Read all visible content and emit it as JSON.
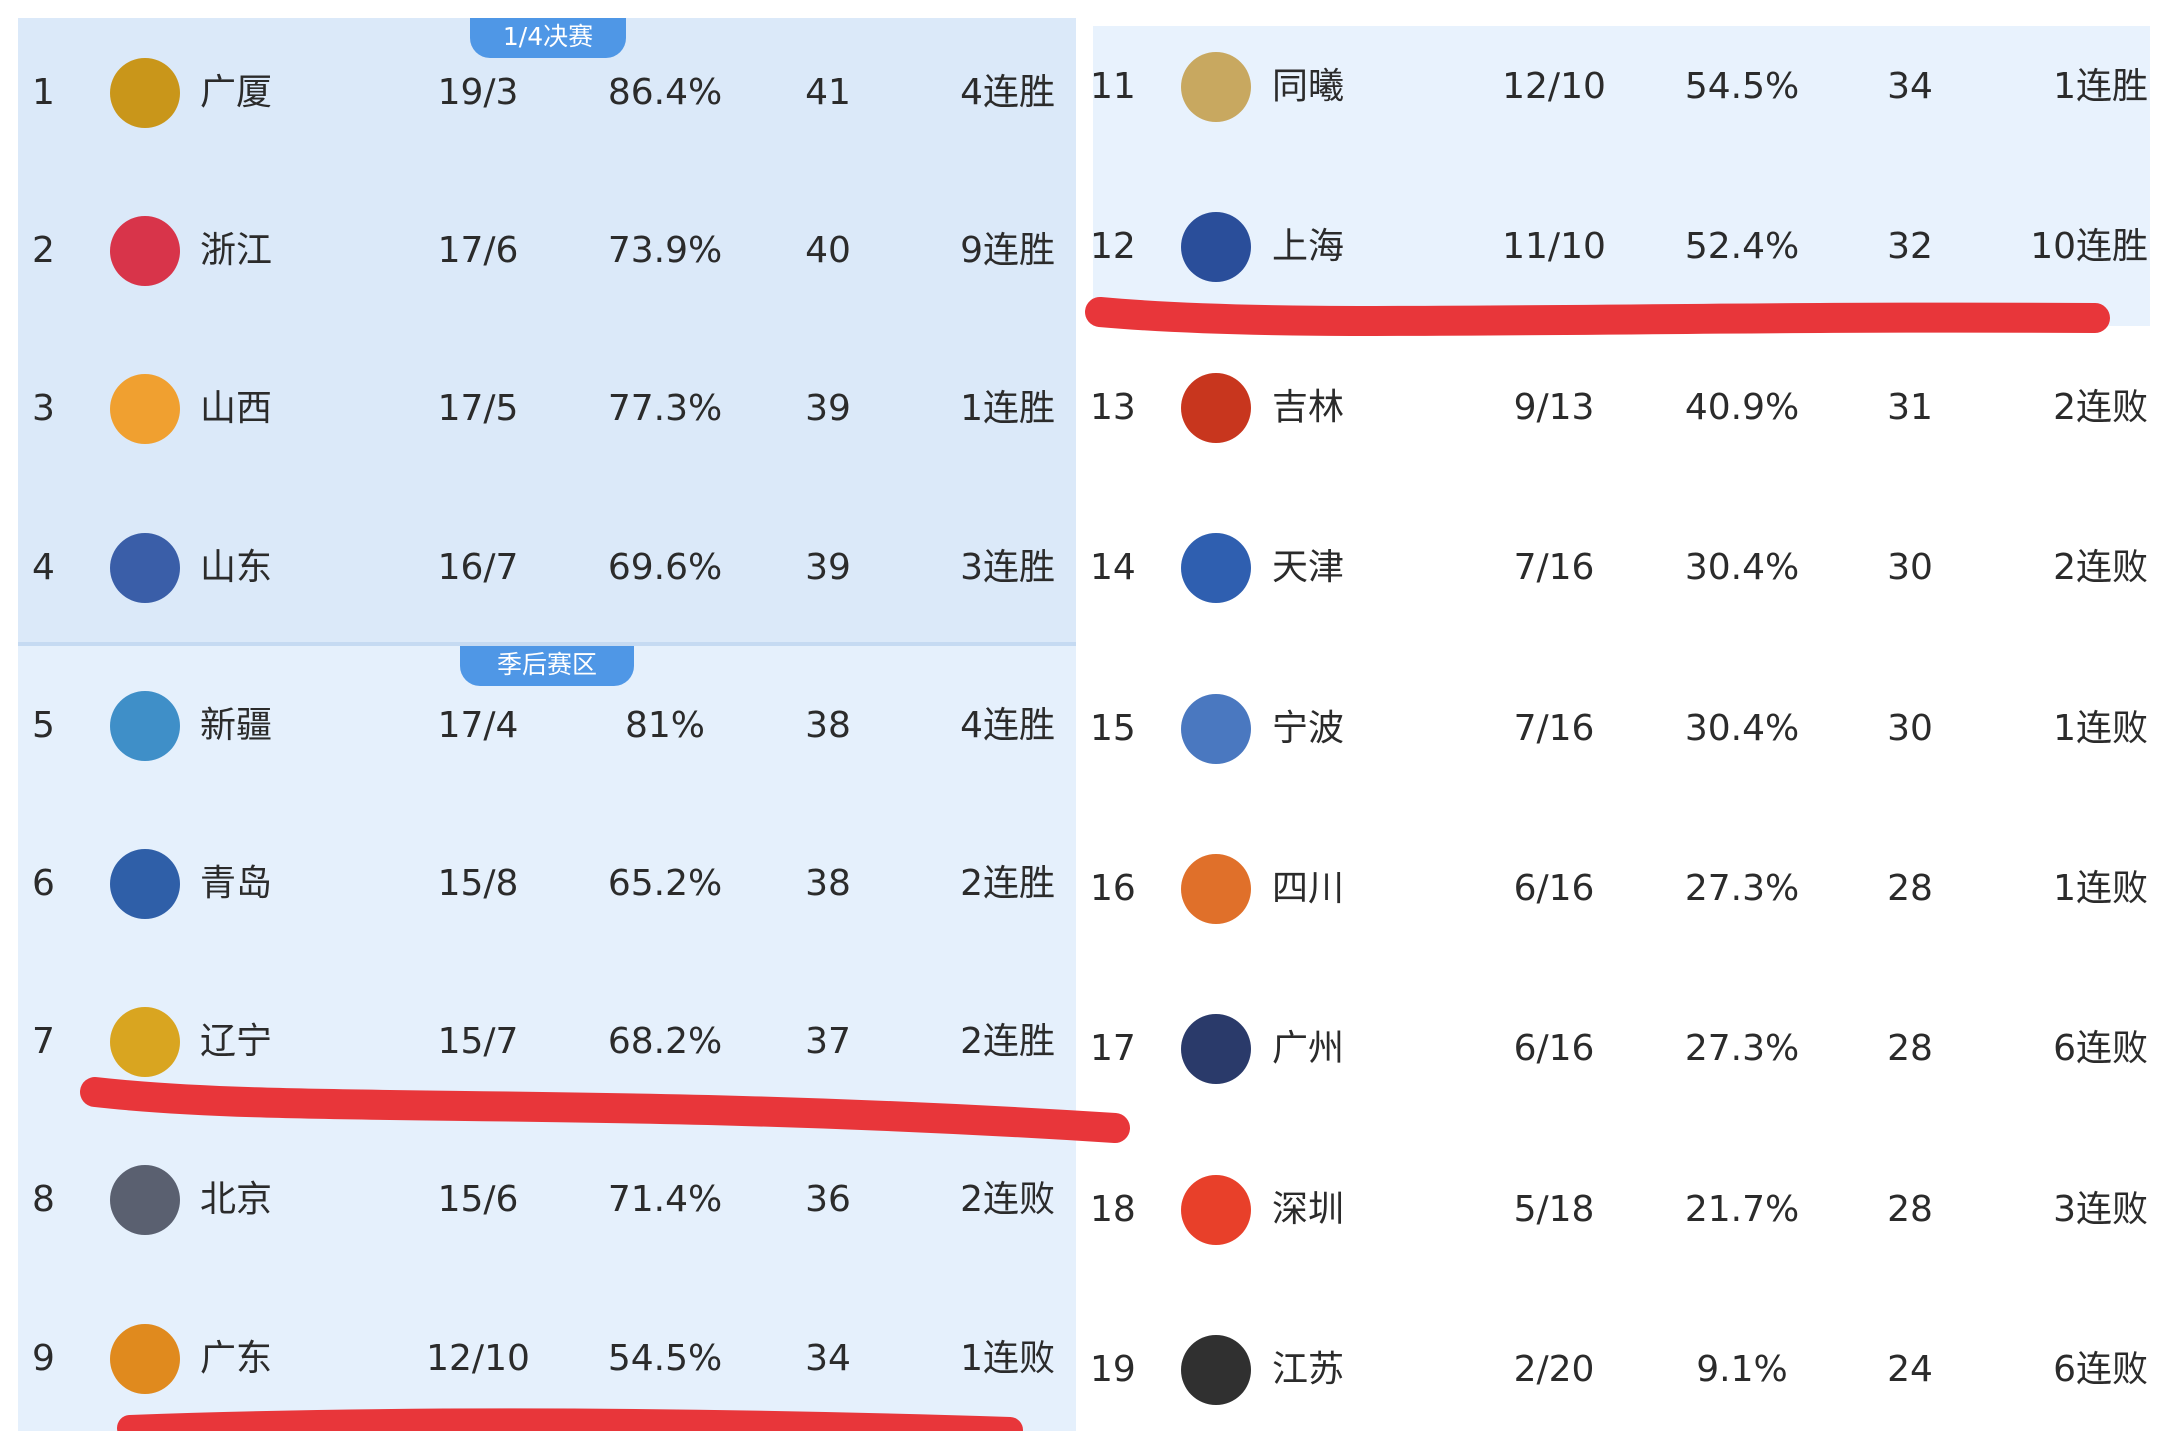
{
  "sections": {
    "quarterfinal_label": "1/4决赛",
    "playoff_label": "季后赛区"
  },
  "colors": {
    "badge": "#4f97e6",
    "highlight_line": "#e8363a"
  },
  "left_table": [
    {
      "rank": "1",
      "team": "广厦",
      "record": "19/3",
      "pct": "86.4%",
      "points": "41",
      "streak": "4连胜",
      "logo_color": "#c9961a"
    },
    {
      "rank": "2",
      "team": "浙江",
      "record": "17/6",
      "pct": "73.9%",
      "points": "40",
      "streak": "9连胜",
      "logo_color": "#d8344a"
    },
    {
      "rank": "3",
      "team": "山西",
      "record": "17/5",
      "pct": "77.3%",
      "points": "39",
      "streak": "1连胜",
      "logo_color": "#f0a030"
    },
    {
      "rank": "4",
      "team": "山东",
      "record": "16/7",
      "pct": "69.6%",
      "points": "39",
      "streak": "3连胜",
      "logo_color": "#3a5ea8"
    },
    {
      "rank": "5",
      "team": "新疆",
      "record": "17/4",
      "pct": "81%",
      "points": "38",
      "streak": "4连胜",
      "logo_color": "#3f8fc8"
    },
    {
      "rank": "6",
      "team": "青岛",
      "record": "15/8",
      "pct": "65.2%",
      "points": "38",
      "streak": "2连胜",
      "logo_color": "#2f5fa8"
    },
    {
      "rank": "7",
      "team": "辽宁",
      "record": "15/7",
      "pct": "68.2%",
      "points": "37",
      "streak": "2连胜",
      "logo_color": "#d9a520"
    },
    {
      "rank": "8",
      "team": "北京",
      "record": "15/6",
      "pct": "71.4%",
      "points": "36",
      "streak": "2连败",
      "logo_color": "#5a6070"
    },
    {
      "rank": "9",
      "team": "广东",
      "record": "12/10",
      "pct": "54.5%",
      "points": "34",
      "streak": "1连败",
      "logo_color": "#e08a1e"
    }
  ],
  "right_table": [
    {
      "rank": "11",
      "team": "同曦",
      "record": "12/10",
      "pct": "54.5%",
      "points": "34",
      "streak": "1连胜",
      "logo_color": "#c8a860"
    },
    {
      "rank": "12",
      "team": "上海",
      "record": "11/10",
      "pct": "52.4%",
      "points": "32",
      "streak": "10连胜",
      "logo_color": "#2a4e9a"
    },
    {
      "rank": "13",
      "team": "吉林",
      "record": "9/13",
      "pct": "40.9%",
      "points": "31",
      "streak": "2连败",
      "logo_color": "#c8361e"
    },
    {
      "rank": "14",
      "team": "天津",
      "record": "7/16",
      "pct": "30.4%",
      "points": "30",
      "streak": "2连败",
      "logo_color": "#2f5fb0"
    },
    {
      "rank": "15",
      "team": "宁波",
      "record": "7/16",
      "pct": "30.4%",
      "points": "30",
      "streak": "1连败",
      "logo_color": "#4a78c0"
    },
    {
      "rank": "16",
      "team": "四川",
      "record": "6/16",
      "pct": "27.3%",
      "points": "28",
      "streak": "1连败",
      "logo_color": "#e0702a"
    },
    {
      "rank": "17",
      "team": "广州",
      "record": "6/16",
      "pct": "27.3%",
      "points": "28",
      "streak": "6连败",
      "logo_color": "#2a3a6a"
    },
    {
      "rank": "18",
      "team": "深圳",
      "record": "5/18",
      "pct": "21.7%",
      "points": "28",
      "streak": "3连败",
      "logo_color": "#e8402a"
    },
    {
      "rank": "19",
      "team": "江苏",
      "record": "2/20",
      "pct": "9.1%",
      "points": "24",
      "streak": "6连败",
      "logo_color": "#303030"
    }
  ]
}
